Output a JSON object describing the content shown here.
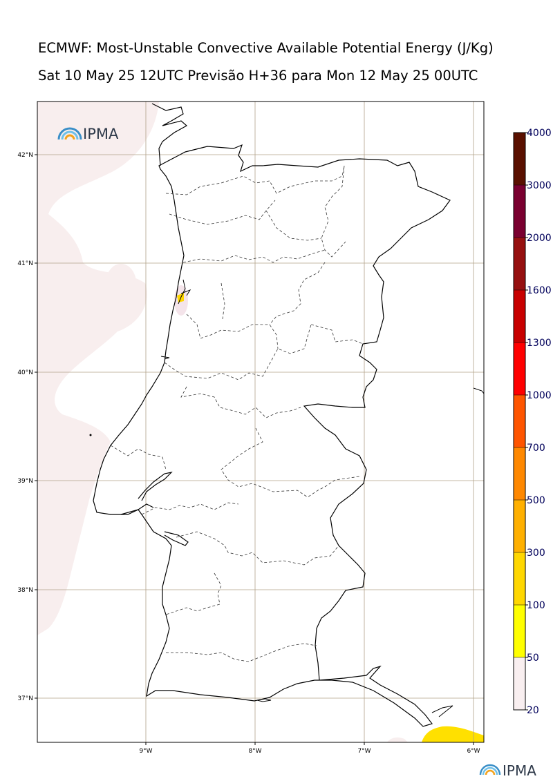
{
  "title": {
    "line1": "ECMWF: Most-Unstable Convective Available Potential Energy (J/Kg)",
    "line2": "Sat 10 May 25 12UTC Previsão H+36 para Mon 12 May 25 00UTC"
  },
  "map": {
    "lon_range": [
      -10,
      -5.9
    ],
    "lat_range": [
      36.6,
      42.5
    ],
    "lon_ticks": [
      {
        "value": -9,
        "label": "9°W"
      },
      {
        "value": -8,
        "label": "8°W"
      },
      {
        "value": -7,
        "label": "7°W"
      },
      {
        "value": -6,
        "label": "6°W"
      }
    ],
    "lat_ticks": [
      {
        "value": 42,
        "label": "42°N"
      },
      {
        "value": 41,
        "label": "41°N"
      },
      {
        "value": 40,
        "label": "40°N"
      },
      {
        "value": 39,
        "label": "39°N"
      },
      {
        "value": 38,
        "label": "38°N"
      },
      {
        "value": 37,
        "label": "37°N"
      }
    ],
    "grid": true,
    "colors": {
      "grid": "#b0a088",
      "coast": "#000000",
      "districts": "#333333"
    }
  },
  "colorbar": {
    "levels": [
      {
        "label": "20",
        "color": "#f9eff0"
      },
      {
        "label": "50",
        "color": "#ffff00"
      },
      {
        "label": "100",
        "color": "#ffd700"
      },
      {
        "label": "300",
        "color": "#ffb000"
      },
      {
        "label": "500",
        "color": "#ff8800"
      },
      {
        "label": "700",
        "color": "#ff5500"
      },
      {
        "label": "1000",
        "color": "#ff0000"
      },
      {
        "label": "1300",
        "color": "#c80000"
      },
      {
        "label": "1600",
        "color": "#961010"
      },
      {
        "label": "2000",
        "color": "#7a0030"
      },
      {
        "label": "3000",
        "color": "#5a1000"
      },
      {
        "label": "4000",
        "color": ""
      }
    ]
  },
  "logos": {
    "map_logo_text": "IPMA",
    "footer_logo_text": "IPMA"
  }
}
